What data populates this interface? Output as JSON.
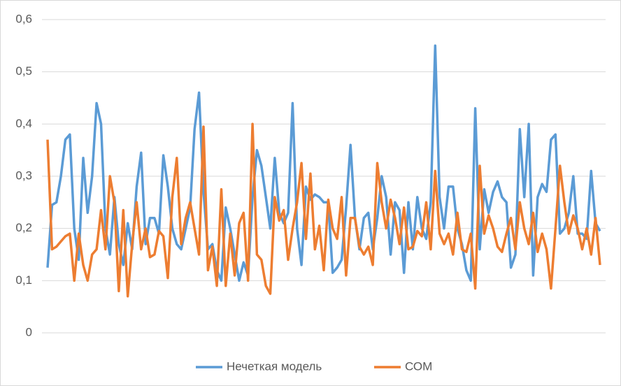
{
  "chart_data": {
    "type": "line",
    "ylim": [
      0,
      0.6
    ],
    "yticks": [
      0,
      {
        "value": 0.1,
        "label": "0,1"
      },
      {
        "value": 0.2,
        "label": "0,2"
      },
      {
        "value": 0.3,
        "label": "0,3"
      },
      {
        "value": 0.4,
        "label": "0,4"
      },
      {
        "value": 0.5,
        "label": "0,5"
      },
      {
        "value": 0.6,
        "label": "0,6"
      }
    ],
    "grid": true,
    "legend": "bottom",
    "series": [
      {
        "name": "Нечеткая модель",
        "color": "#5b9bd5",
        "values": [
          0.125,
          0.245,
          0.25,
          0.3,
          0.37,
          0.38,
          0.2,
          0.14,
          0.335,
          0.23,
          0.3,
          0.44,
          0.4,
          0.2,
          0.15,
          0.26,
          0.17,
          0.13,
          0.21,
          0.16,
          0.28,
          0.345,
          0.17,
          0.22,
          0.22,
          0.19,
          0.34,
          0.28,
          0.2,
          0.17,
          0.16,
          0.2,
          0.24,
          0.39,
          0.46,
          0.27,
          0.16,
          0.17,
          0.12,
          0.1,
          0.24,
          0.2,
          0.15,
          0.1,
          0.135,
          0.11,
          0.26,
          0.35,
          0.32,
          0.26,
          0.2,
          0.335,
          0.23,
          0.21,
          0.23,
          0.44,
          0.2,
          0.13,
          0.28,
          0.255,
          0.265,
          0.26,
          0.25,
          0.25,
          0.115,
          0.125,
          0.14,
          0.24,
          0.36,
          0.22,
          0.16,
          0.22,
          0.23,
          0.16,
          0.22,
          0.3,
          0.26,
          0.15,
          0.25,
          0.235,
          0.115,
          0.25,
          0.16,
          0.26,
          0.2,
          0.18,
          0.25,
          0.55,
          0.26,
          0.2,
          0.28,
          0.28,
          0.2,
          0.17,
          0.12,
          0.1,
          0.43,
          0.16,
          0.275,
          0.23,
          0.27,
          0.29,
          0.26,
          0.25,
          0.125,
          0.15,
          0.39,
          0.26,
          0.4,
          0.11,
          0.26,
          0.285,
          0.27,
          0.37,
          0.38,
          0.19,
          0.2,
          0.23,
          0.3,
          0.19,
          0.19,
          0.18,
          0.31,
          0.21,
          0.195
        ]
      },
      {
        "name": "СОМ",
        "color": "#ed7d31",
        "values": [
          0.37,
          0.16,
          0.165,
          0.175,
          0.185,
          0.19,
          0.1,
          0.19,
          0.13,
          0.1,
          0.15,
          0.16,
          0.235,
          0.16,
          0.3,
          0.25,
          0.08,
          0.235,
          0.07,
          0.17,
          0.25,
          0.16,
          0.2,
          0.145,
          0.15,
          0.195,
          0.185,
          0.105,
          0.26,
          0.335,
          0.17,
          0.22,
          0.25,
          0.2,
          0.15,
          0.395,
          0.12,
          0.165,
          0.09,
          0.275,
          0.09,
          0.19,
          0.11,
          0.21,
          0.23,
          0.1,
          0.4,
          0.15,
          0.14,
          0.09,
          0.075,
          0.26,
          0.215,
          0.235,
          0.14,
          0.2,
          0.25,
          0.325,
          0.18,
          0.305,
          0.16,
          0.205,
          0.12,
          0.255,
          0.2,
          0.18,
          0.26,
          0.11,
          0.22,
          0.22,
          0.165,
          0.15,
          0.165,
          0.13,
          0.325,
          0.25,
          0.2,
          0.255,
          0.22,
          0.17,
          0.24,
          0.16,
          0.165,
          0.195,
          0.185,
          0.25,
          0.16,
          0.31,
          0.19,
          0.17,
          0.19,
          0.15,
          0.23,
          0.16,
          0.155,
          0.19,
          0.085,
          0.32,
          0.19,
          0.225,
          0.2,
          0.165,
          0.155,
          0.19,
          0.22,
          0.16,
          0.25,
          0.2,
          0.17,
          0.23,
          0.155,
          0.19,
          0.16,
          0.085,
          0.2,
          0.32,
          0.25,
          0.19,
          0.225,
          0.2,
          0.16,
          0.2,
          0.15,
          0.22,
          0.13
        ]
      }
    ]
  }
}
